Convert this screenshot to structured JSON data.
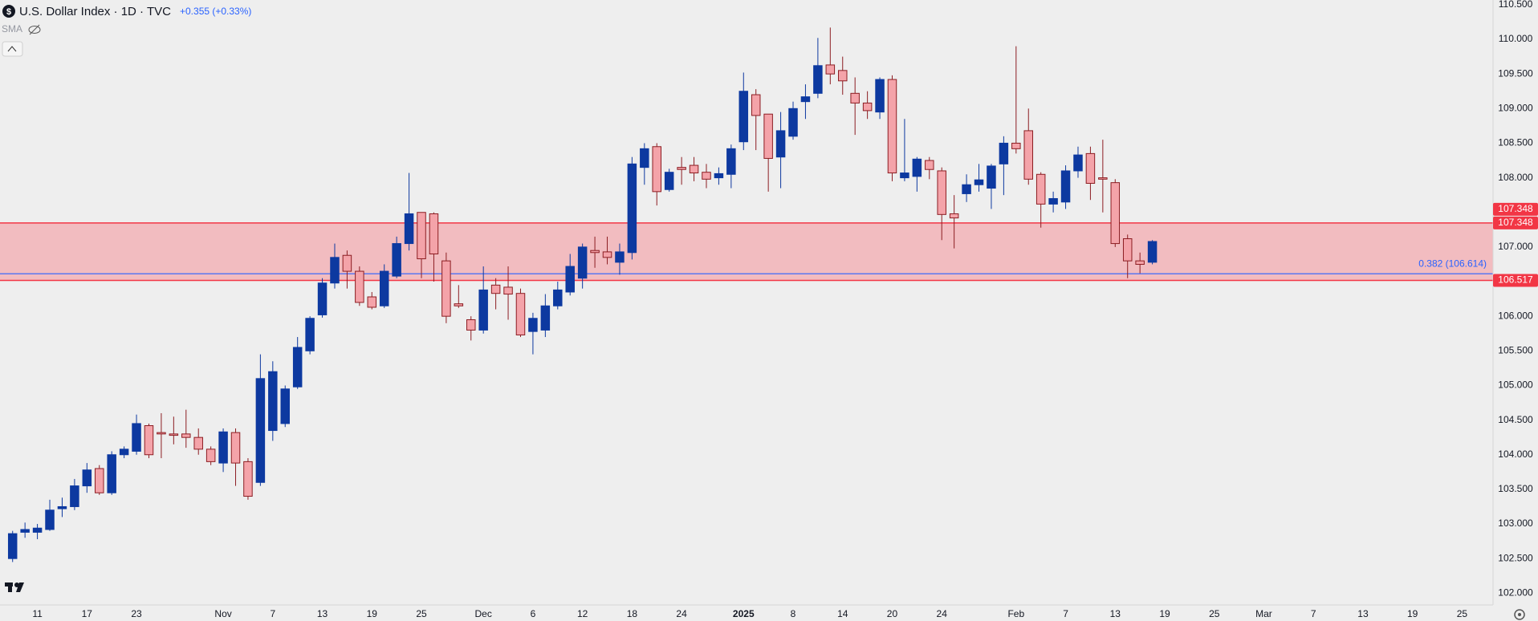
{
  "header": {
    "symbol_icon": "$",
    "title": "U.S. Dollar Index · 1D · TVC",
    "change_label": "+0.355 (+0.33%)",
    "indicator": "SMA"
  },
  "chart_data": {
    "type": "candlestick",
    "categories": [
      null,
      null,
      "11",
      null,
      null,
      null,
      "17",
      null,
      null,
      null,
      "23",
      null,
      null,
      null,
      null,
      null,
      null,
      "Nov",
      null,
      null,
      null,
      "7",
      null,
      null,
      null,
      "13",
      null,
      null,
      null,
      "19",
      null,
      null,
      null,
      "25",
      null,
      null,
      null,
      null,
      "Dec",
      null,
      null,
      null,
      "6",
      null,
      null,
      null,
      "12",
      null,
      null,
      null,
      "18",
      null,
      null,
      null,
      "24",
      null,
      null,
      null,
      null,
      "2025",
      null,
      null,
      null,
      "8",
      null,
      null,
      null,
      "14",
      null,
      null,
      null,
      "20",
      null,
      null,
      null,
      "24",
      null,
      null,
      null,
      null,
      null,
      "Feb",
      null,
      null,
      null,
      "7",
      null,
      null,
      null,
      "13",
      null,
      null,
      null,
      "19",
      null,
      null,
      null,
      "25",
      null,
      null,
      null,
      "Mar",
      null,
      null,
      null,
      "7",
      null,
      null,
      null,
      "13",
      null,
      null,
      null,
      "19",
      null,
      null,
      null,
      "25",
      null,
      null
    ],
    "open": [
      102.5,
      102.88,
      102.88,
      102.92,
      103.22,
      103.25,
      103.55,
      103.8,
      103.45,
      104.0,
      104.05,
      104.42,
      104.32,
      104.3,
      104.3,
      104.25,
      104.08,
      103.88,
      104.32,
      103.9,
      103.6,
      104.35,
      104.45,
      104.98,
      105.5,
      106.02,
      106.48,
      106.88,
      106.65,
      106.28,
      106.15,
      106.58,
      107.05,
      107.5,
      107.48,
      106.8,
      106.18,
      105.95,
      105.8,
      106.45,
      106.42,
      106.33,
      105.78,
      105.8,
      106.15,
      106.35,
      106.55,
      106.95,
      106.93,
      106.78,
      106.92,
      108.15,
      108.45,
      107.83,
      108.15,
      108.18,
      108.08,
      108.0,
      108.05,
      108.52,
      109.2,
      108.92,
      108.3,
      108.6,
      109.1,
      109.22,
      109.63,
      109.55,
      109.22,
      109.08,
      108.95,
      109.42,
      108.0,
      108.02,
      108.25,
      108.1,
      107.48,
      107.77,
      107.9,
      107.85,
      108.2,
      108.5,
      108.68,
      108.05,
      107.62,
      107.65,
      108.1,
      108.35,
      108.0,
      107.93,
      107.12,
      106.8,
      106.78,
      null,
      null,
      null,
      null,
      null,
      null,
      null,
      null,
      null,
      null,
      null,
      null,
      null,
      null,
      null,
      null,
      null,
      null,
      null,
      null,
      null,
      null,
      null,
      null,
      null,
      null,
      null
    ],
    "high": [
      102.9,
      103.02,
      103.0,
      103.35,
      103.38,
      103.65,
      103.88,
      103.85,
      104.05,
      104.12,
      104.58,
      104.45,
      104.6,
      104.55,
      104.65,
      104.38,
      104.12,
      104.38,
      104.38,
      103.95,
      105.45,
      105.35,
      105.0,
      105.7,
      106.0,
      106.55,
      107.05,
      106.95,
      106.72,
      106.35,
      106.75,
      107.15,
      108.07,
      107.5,
      107.5,
      106.92,
      106.45,
      106.0,
      106.72,
      106.55,
      106.72,
      106.4,
      106.05,
      106.32,
      106.5,
      106.9,
      107.05,
      107.15,
      107.15,
      107.05,
      108.3,
      108.5,
      108.5,
      108.13,
      108.3,
      108.3,
      108.2,
      108.15,
      108.48,
      109.52,
      109.28,
      108.92,
      108.95,
      109.1,
      109.35,
      110.02,
      110.17,
      109.75,
      109.45,
      109.25,
      109.45,
      109.48,
      108.85,
      108.3,
      108.3,
      108.15,
      107.75,
      108.05,
      108.2,
      108.2,
      108.6,
      109.9,
      109.0,
      108.08,
      107.8,
      108.18,
      108.45,
      108.45,
      108.55,
      107.98,
      107.18,
      106.92,
      107.1,
      null,
      null,
      null,
      null,
      null,
      null,
      null,
      null,
      null,
      null,
      null,
      null,
      null,
      null,
      null,
      null,
      null,
      null,
      null,
      null,
      null,
      null,
      null,
      null,
      null,
      null,
      null
    ],
    "low": [
      102.45,
      102.8,
      102.78,
      102.9,
      103.1,
      103.2,
      103.45,
      103.42,
      103.42,
      103.95,
      104.0,
      103.95,
      103.95,
      104.15,
      104.1,
      104.0,
      103.85,
      103.75,
      103.55,
      103.35,
      103.55,
      104.2,
      104.4,
      104.95,
      105.45,
      105.98,
      106.4,
      106.4,
      106.15,
      106.1,
      106.12,
      106.55,
      106.95,
      106.55,
      106.5,
      105.9,
      106.12,
      105.65,
      105.75,
      106.1,
      105.95,
      105.7,
      105.45,
      105.7,
      106.1,
      106.3,
      106.4,
      106.7,
      106.75,
      106.6,
      106.82,
      107.9,
      107.6,
      107.8,
      107.9,
      107.95,
      107.85,
      107.9,
      107.85,
      108.4,
      108.4,
      107.8,
      107.85,
      108.55,
      108.85,
      109.15,
      109.35,
      109.2,
      108.62,
      108.85,
      108.85,
      107.95,
      107.95,
      107.8,
      107.98,
      107.1,
      106.98,
      107.65,
      107.8,
      107.55,
      107.75,
      108.35,
      107.9,
      107.28,
      107.5,
      107.55,
      108.0,
      107.68,
      107.5,
      107.0,
      106.55,
      106.62,
      106.75,
      null,
      null,
      null,
      null,
      null,
      null,
      null,
      null,
      null,
      null,
      null,
      null,
      null,
      null,
      null,
      null,
      null,
      null,
      null,
      null,
      null,
      null,
      null,
      null,
      null,
      null,
      null
    ],
    "close": [
      102.86,
      102.92,
      102.94,
      103.2,
      103.25,
      103.55,
      103.78,
      103.45,
      104.0,
      104.08,
      104.45,
      104.0,
      104.3,
      104.28,
      104.25,
      104.08,
      103.9,
      104.33,
      103.88,
      103.4,
      105.1,
      105.2,
      104.95,
      105.55,
      105.97,
      106.48,
      106.85,
      106.65,
      106.2,
      106.13,
      106.65,
      107.05,
      107.48,
      106.83,
      106.9,
      106.0,
      106.15,
      105.8,
      106.38,
      106.33,
      106.32,
      105.73,
      105.97,
      106.15,
      106.38,
      106.72,
      107.0,
      106.92,
      106.85,
      106.93,
      108.2,
      108.42,
      107.8,
      108.08,
      108.12,
      108.07,
      107.98,
      108.06,
      108.42,
      109.25,
      108.9,
      108.28,
      108.68,
      109.0,
      109.17,
      109.62,
      109.5,
      109.4,
      109.08,
      108.97,
      109.42,
      108.07,
      108.07,
      108.27,
      108.12,
      107.47,
      107.42,
      107.9,
      107.97,
      108.17,
      108.5,
      108.42,
      107.98,
      107.62,
      107.7,
      108.1,
      108.33,
      107.92,
      107.98,
      107.05,
      106.8,
      106.75,
      107.08,
      null,
      null,
      null,
      null,
      null,
      null,
      null,
      null,
      null,
      null,
      null,
      null,
      null,
      null,
      null,
      null,
      null,
      null,
      null,
      null,
      null,
      null,
      null,
      null,
      null,
      null,
      null
    ],
    "up_color": "#0d39a0",
    "down_color": "#f4a3a9",
    "down_border": "#8c1d22",
    "ylim": [
      101.83,
      110.568
    ],
    "yticks": [
      {
        "value": 102,
        "label": "102.000"
      },
      {
        "value": 102.5,
        "label": "102.500"
      },
      {
        "value": 103,
        "label": "103.000"
      },
      {
        "value": 103.5,
        "label": "103.500"
      },
      {
        "value": 104,
        "label": "104.000"
      },
      {
        "value": 104.5,
        "label": "104.500"
      },
      {
        "value": 105,
        "label": "105.000"
      },
      {
        "value": 105.5,
        "label": "105.500"
      },
      {
        "value": 106,
        "label": "106.000"
      },
      {
        "value": 106.5,
        "label": "106.500"
      },
      {
        "value": 107,
        "label": "107.000"
      },
      {
        "value": 107.5,
        "label": "107.500"
      },
      {
        "value": 108,
        "label": "108.000"
      },
      {
        "value": 108.5,
        "label": "108.500"
      },
      {
        "value": 109,
        "label": "109.000"
      },
      {
        "value": 109.5,
        "label": "109.500"
      },
      {
        "value": 110,
        "label": "110.000"
      },
      {
        "value": 110.5,
        "label": "110.500"
      }
    ],
    "grid": false,
    "zone": {
      "top": 107.348,
      "bottom": 106.517,
      "top_labels": [
        "107.348",
        "107.348"
      ],
      "bottom_label": "106.517",
      "color": "#f23645",
      "fill": "#f2b3b7"
    },
    "fib": {
      "value": 106.614,
      "label": "0.382 (106.614)",
      "color": "#2962ff"
    }
  }
}
